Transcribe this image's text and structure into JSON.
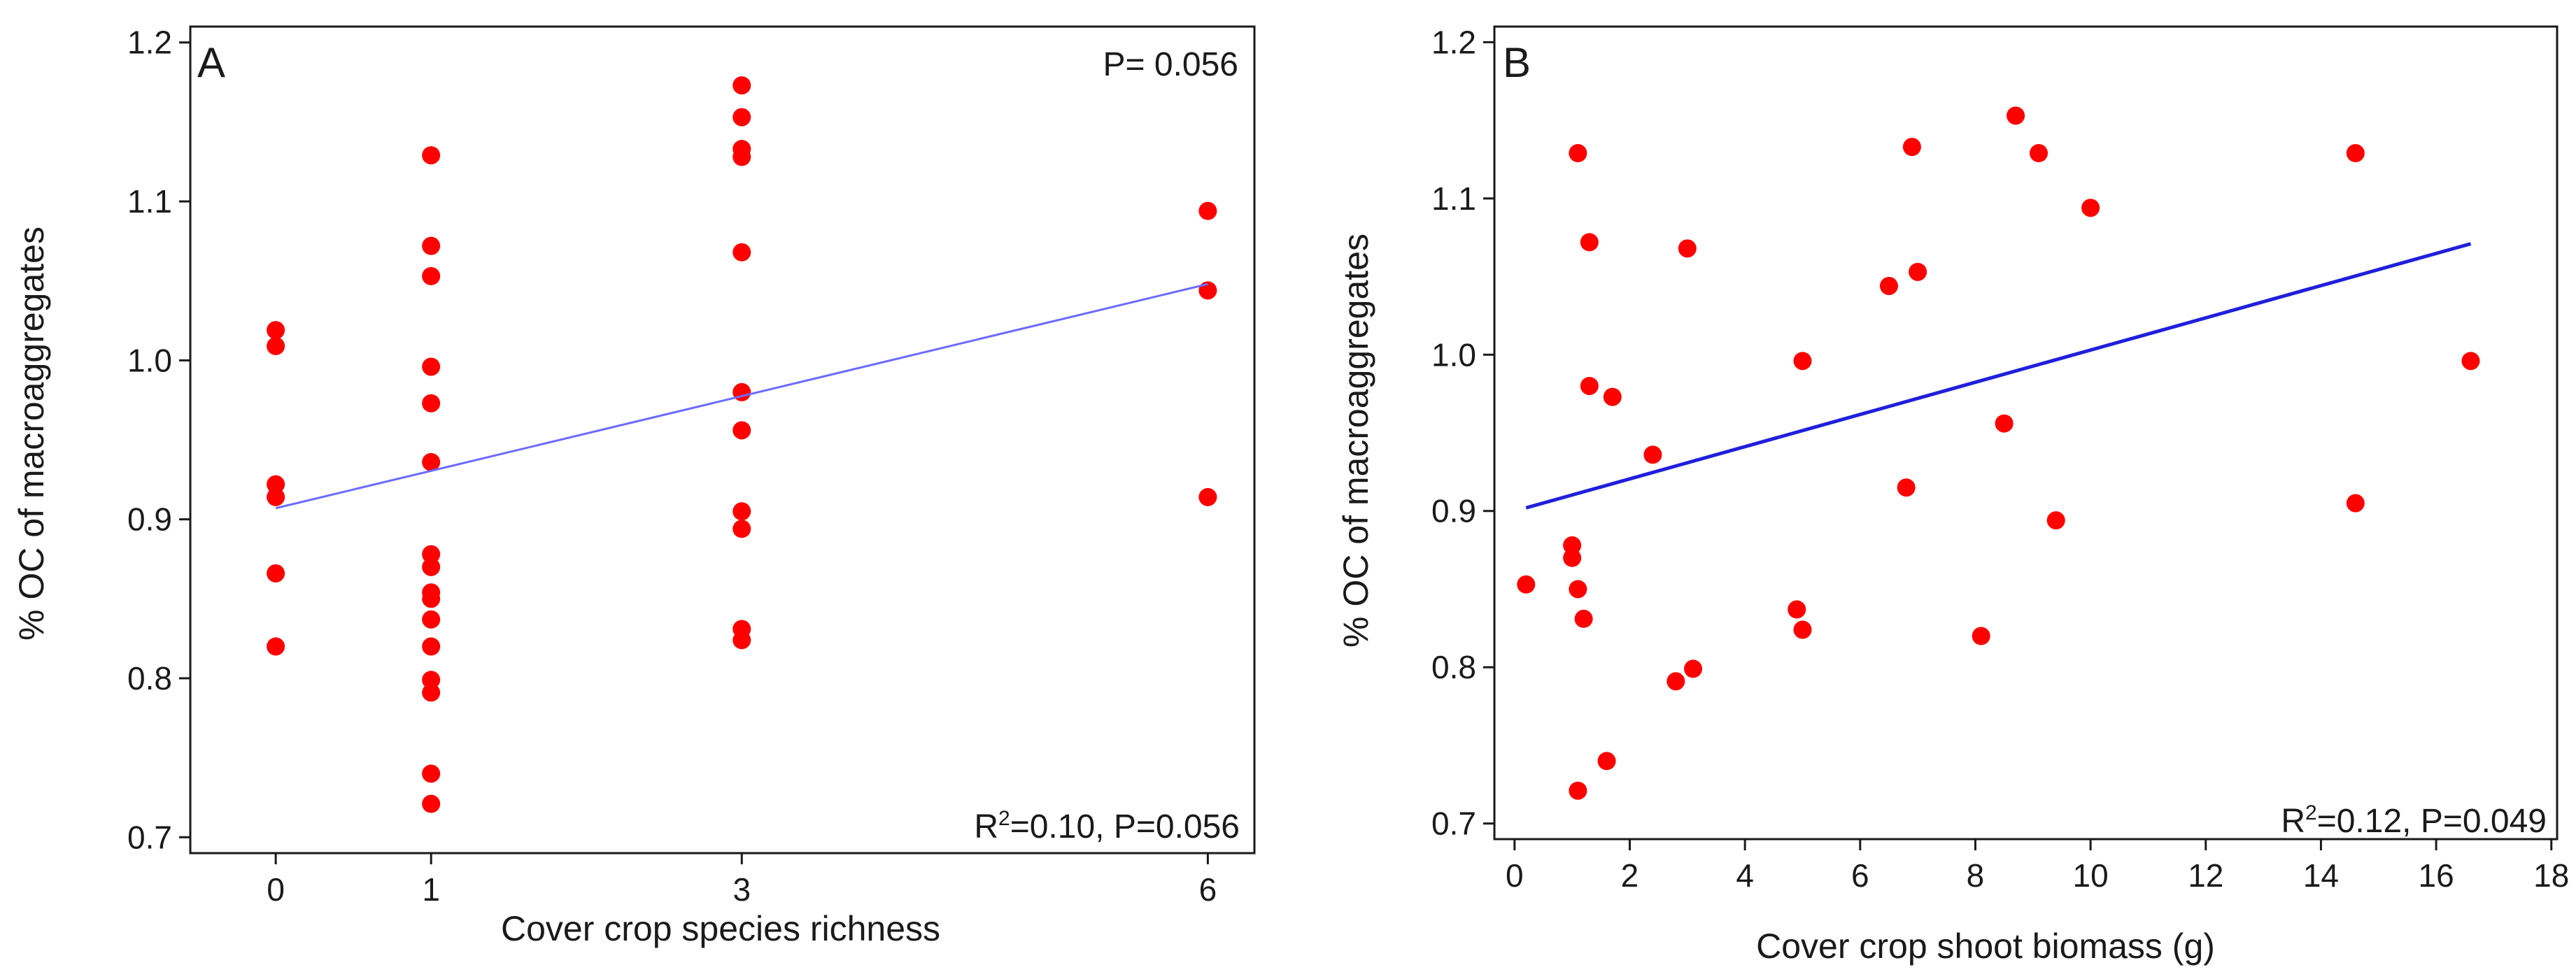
{
  "colors": {
    "points": "#ff0000",
    "fit_line_A": "#6b6bff",
    "fit_line_B": "#1f1fdd",
    "axis": "#1a1a1a"
  },
  "chart_data": [
    {
      "type": "scatter",
      "panel": "A",
      "xlabel": "Cover crop species richness",
      "ylabel": "% OC of macroaggregates",
      "p_label": "P= 0.056",
      "stat_label": "=0.10, P=0.056",
      "xlim": [
        -0.55,
        6.3
      ],
      "ylim": [
        0.69,
        1.21
      ],
      "xticks": [
        0,
        1,
        3,
        6
      ],
      "xtick_labels": [
        "0",
        "1",
        "3",
        "6"
      ],
      "yticks": [
        0.7,
        0.8,
        0.9,
        1.0,
        1.1,
        1.2
      ],
      "ytick_labels": [
        "0.7",
        "0.8",
        "0.9",
        "1.0",
        "1.1",
        "1.2"
      ],
      "points": [
        {
          "x": 0,
          "y": 1.019
        },
        {
          "x": 0,
          "y": 1.009
        },
        {
          "x": 0,
          "y": 0.922
        },
        {
          "x": 0,
          "y": 0.914
        },
        {
          "x": 0,
          "y": 0.866
        },
        {
          "x": 0,
          "y": 0.82
        },
        {
          "x": 1,
          "y": 1.129
        },
        {
          "x": 1,
          "y": 1.072
        },
        {
          "x": 1,
          "y": 1.053
        },
        {
          "x": 1,
          "y": 0.996
        },
        {
          "x": 1,
          "y": 0.973
        },
        {
          "x": 1,
          "y": 0.936
        },
        {
          "x": 1,
          "y": 0.878
        },
        {
          "x": 1,
          "y": 0.87
        },
        {
          "x": 1,
          "y": 0.854
        },
        {
          "x": 1,
          "y": 0.85
        },
        {
          "x": 1,
          "y": 0.837
        },
        {
          "x": 1,
          "y": 0.82
        },
        {
          "x": 1,
          "y": 0.799
        },
        {
          "x": 1,
          "y": 0.791
        },
        {
          "x": 1,
          "y": 0.74
        },
        {
          "x": 1,
          "y": 0.721
        },
        {
          "x": 3,
          "y": 1.173
        },
        {
          "x": 3,
          "y": 1.153
        },
        {
          "x": 3,
          "y": 1.133
        },
        {
          "x": 3,
          "y": 1.128
        },
        {
          "x": 3,
          "y": 1.068
        },
        {
          "x": 3,
          "y": 0.98
        },
        {
          "x": 3,
          "y": 0.956
        },
        {
          "x": 3,
          "y": 0.905
        },
        {
          "x": 3,
          "y": 0.894
        },
        {
          "x": 3,
          "y": 0.831
        },
        {
          "x": 3,
          "y": 0.824
        },
        {
          "x": 6,
          "y": 1.094
        },
        {
          "x": 6,
          "y": 1.044
        },
        {
          "x": 6,
          "y": 0.914
        }
      ],
      "fit_line": [
        [
          0,
          0.907
        ],
        [
          6,
          1.048
        ]
      ]
    },
    {
      "type": "scatter",
      "panel": "B",
      "xlabel": "Cover crop shoot biomass (g)",
      "ylabel": "% OC of macroaggregates",
      "stat_label": "=0.12, P=0.049",
      "xlim": [
        -0.35,
        18.1
      ],
      "ylim": [
        0.69,
        1.21
      ],
      "xticks": [
        0,
        2,
        4,
        6,
        8,
        10,
        12,
        14,
        16,
        18
      ],
      "xtick_labels": [
        "0",
        "2",
        "4",
        "6",
        "8",
        "10",
        "12",
        "14",
        "16",
        "18"
      ],
      "yticks": [
        0.7,
        0.8,
        0.9,
        1.0,
        1.1,
        1.2
      ],
      "ytick_labels": [
        "0.7",
        "0.8",
        "0.9",
        "1.0",
        "1.1",
        "1.2"
      ],
      "points": [
        {
          "x": 0.2,
          "y": 0.853
        },
        {
          "x": 1.0,
          "y": 0.878
        },
        {
          "x": 1.0,
          "y": 0.87
        },
        {
          "x": 1.1,
          "y": 1.129
        },
        {
          "x": 1.1,
          "y": 0.85
        },
        {
          "x": 1.1,
          "y": 0.721
        },
        {
          "x": 1.2,
          "y": 0.831
        },
        {
          "x": 1.3,
          "y": 1.072
        },
        {
          "x": 1.3,
          "y": 0.98
        },
        {
          "x": 1.6,
          "y": 0.74
        },
        {
          "x": 1.7,
          "y": 0.973
        },
        {
          "x": 2.4,
          "y": 0.936
        },
        {
          "x": 2.8,
          "y": 0.791
        },
        {
          "x": 3.0,
          "y": 1.068
        },
        {
          "x": 3.1,
          "y": 0.799
        },
        {
          "x": 4.9,
          "y": 0.837
        },
        {
          "x": 5.0,
          "y": 0.996
        },
        {
          "x": 5.0,
          "y": 0.824
        },
        {
          "x": 6.5,
          "y": 1.044
        },
        {
          "x": 6.8,
          "y": 0.915
        },
        {
          "x": 6.9,
          "y": 1.133
        },
        {
          "x": 7.0,
          "y": 1.053
        },
        {
          "x": 8.1,
          "y": 0.82
        },
        {
          "x": 8.5,
          "y": 0.956
        },
        {
          "x": 8.7,
          "y": 1.153
        },
        {
          "x": 9.1,
          "y": 1.129
        },
        {
          "x": 9.4,
          "y": 0.894
        },
        {
          "x": 10.0,
          "y": 1.094
        },
        {
          "x": 14.6,
          "y": 1.129
        },
        {
          "x": 14.6,
          "y": 0.905
        },
        {
          "x": 16.6,
          "y": 0.996
        }
      ],
      "fit_line": [
        [
          0.2,
          0.902
        ],
        [
          16.6,
          1.071
        ]
      ]
    }
  ]
}
